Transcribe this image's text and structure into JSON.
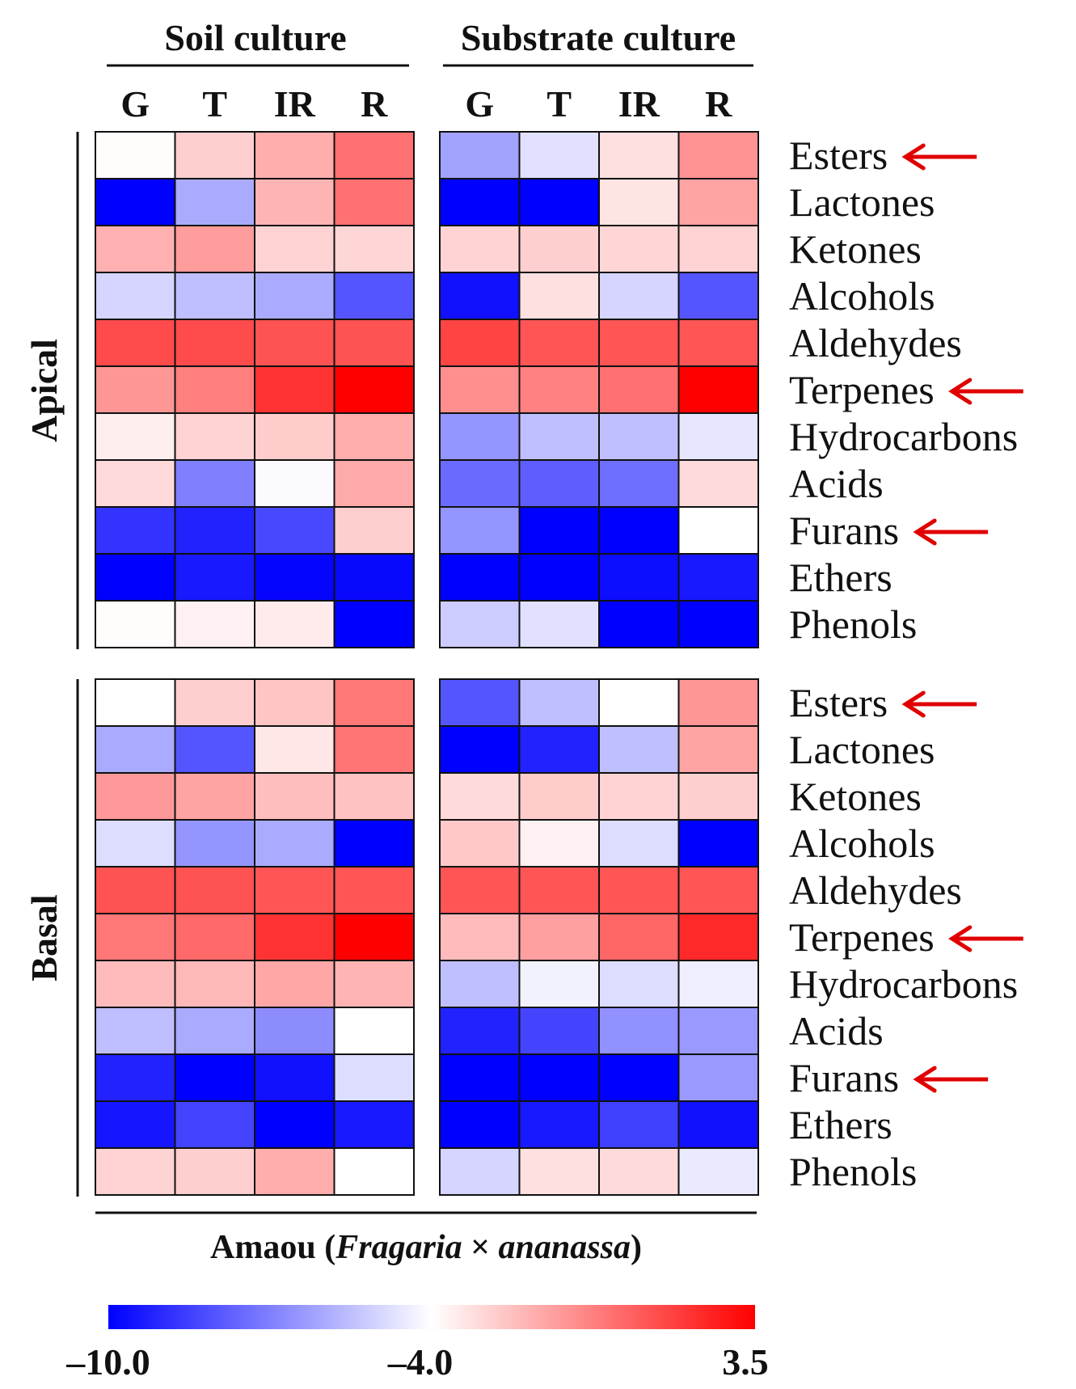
{
  "colors": {
    "low": "#0000ff",
    "mid": "#ffffff",
    "high": "#ff0000",
    "arrow": "#e00000",
    "grid": "#111111"
  },
  "chart_data": {
    "type": "heatmap",
    "title": "",
    "groups": [
      "Soil culture",
      "Substrate culture"
    ],
    "columns": [
      "G",
      "T",
      "IR",
      "R"
    ],
    "rows": [
      "Esters",
      "Lactones",
      "Ketones",
      "Alcohols",
      "Aldehydes",
      "Terpenes",
      "Hydrocarbons",
      "Acids",
      "Furans",
      "Ethers",
      "Phenols"
    ],
    "highlighted_rows": [
      "Esters",
      "Terpenes",
      "Furans"
    ],
    "panels": [
      {
        "name": "Apical",
        "values": [
          [
            -3.9,
            -2.6,
            -1.6,
            0.2,
            -6.2,
            -4.7,
            -3.1,
            -0.8
          ],
          [
            -10.0,
            -6.0,
            -1.8,
            0.2,
            -10.0,
            -10.0,
            -3.2,
            -1.3
          ],
          [
            -1.7,
            -1.1,
            -2.7,
            -2.8,
            -2.7,
            -2.6,
            -2.8,
            -2.7
          ],
          [
            -5.0,
            -5.5,
            -6.0,
            -8.0,
            -9.6,
            -3.1,
            -5.0,
            -8.0
          ],
          [
            1.3,
            1.3,
            1.1,
            1.1,
            1.5,
            1.0,
            1.0,
            1.0
          ],
          [
            -0.9,
            -0.2,
            2.0,
            3.5,
            -0.7,
            -0.3,
            0.2,
            3.5
          ],
          [
            -3.5,
            -2.7,
            -2.5,
            -1.6,
            -6.5,
            -5.5,
            -5.5,
            -4.6
          ],
          [
            -2.9,
            -7.0,
            -4.1,
            -1.5,
            -7.5,
            -7.8,
            -7.4,
            -2.9
          ],
          [
            -8.8,
            -9.2,
            -8.3,
            -2.6,
            -6.5,
            -10.0,
            -10.0,
            -4.0
          ],
          [
            -10.0,
            -9.4,
            -9.9,
            -9.8,
            -10.0,
            -10.0,
            -9.7,
            -9.4
          ],
          [
            -3.9,
            -3.6,
            -3.4,
            -10.0,
            -5.2,
            -4.7,
            -10.0,
            -10.0
          ]
        ]
      },
      {
        "name": "Basal",
        "values": [
          [
            -4.0,
            -2.6,
            -2.3,
            0.0,
            -8.0,
            -5.5,
            -4.0,
            -0.9
          ],
          [
            -6.0,
            -8.0,
            -3.3,
            0.1,
            -10.0,
            -9.2,
            -5.5,
            -1.3
          ],
          [
            -1.0,
            -1.3,
            -2.1,
            -2.2,
            -2.9,
            -2.5,
            -2.7,
            -2.6
          ],
          [
            -4.8,
            -6.5,
            -6.0,
            -10.0,
            -2.4,
            -3.6,
            -4.8,
            -10.0
          ],
          [
            1.1,
            1.1,
            1.0,
            1.0,
            1.0,
            1.0,
            1.0,
            1.0
          ],
          [
            0.0,
            0.4,
            2.0,
            3.5,
            -2.0,
            -1.2,
            0.5,
            2.3
          ],
          [
            -2.0,
            -1.9,
            -1.4,
            -1.8,
            -5.5,
            -4.3,
            -4.8,
            -4.4
          ],
          [
            -5.5,
            -6.0,
            -6.7,
            -4.0,
            -9.2,
            -8.4,
            -6.6,
            -6.4
          ],
          [
            -9.2,
            -10.0,
            -9.6,
            -4.8,
            -10.0,
            -10.0,
            -10.0,
            -6.4
          ],
          [
            -9.5,
            -8.4,
            -10.0,
            -9.4,
            -10.0,
            -9.4,
            -8.5,
            -9.6
          ],
          [
            -2.7,
            -2.6,
            -1.6,
            -4.0,
            -5.0,
            -3.1,
            -2.9,
            -4.5
          ]
        ]
      }
    ],
    "caption_prefix": "Amaou (",
    "caption_genus": "Fragaria",
    "caption_mid": " × ",
    "caption_species": "ananassa",
    "caption_suffix": ")",
    "color_scale": {
      "min": -10.0,
      "mid": -4.0,
      "max": 3.5,
      "labels": [
        "–10.0",
        "–4.0",
        "3.5"
      ]
    }
  }
}
